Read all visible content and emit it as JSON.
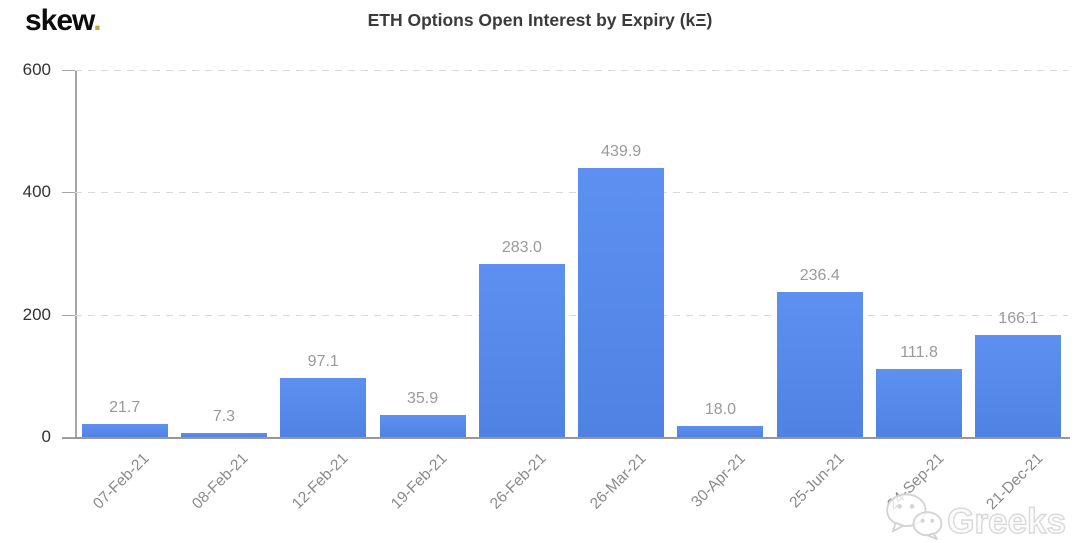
{
  "logo": {
    "text": "skew",
    "dot": "."
  },
  "header": {
    "title": "ETH Options Open Interest by Expiry (kΞ)"
  },
  "watermark": {
    "label": "Greeks",
    "icon": "wechat-icon"
  },
  "chart_data": {
    "type": "bar",
    "title": "ETH Options Open Interest by Expiry (kΞ)",
    "categories": [
      "07-Feb-21",
      "08-Feb-21",
      "12-Feb-21",
      "19-Feb-21",
      "26-Feb-21",
      "26-Mar-21",
      "30-Apr-21",
      "25-Jun-21",
      "24-Sep-21",
      "21-Dec-21"
    ],
    "values": [
      21.7,
      7.3,
      97.1,
      35.9,
      283.0,
      439.9,
      18.0,
      236.4,
      111.8,
      166.1
    ],
    "value_labels": [
      "21.7",
      "7.3",
      "97.1",
      "35.9",
      "283.0",
      "439.9",
      "18.0",
      "236.4",
      "111.8",
      "166.1"
    ],
    "xlabel": "",
    "ylabel": "",
    "ylim": [
      0,
      600
    ],
    "yticks": [
      0,
      200,
      400,
      600
    ],
    "grid": "horizontal-dashed",
    "legend": "none",
    "bar_color": "#5587e8"
  },
  "colors": {
    "bar": "#4f82e2",
    "bar-top": "#5d90f0",
    "grid": "#d9d9d9",
    "axis": "#a6a6a6",
    "baseline": "#979797",
    "title": "#3b3b3b",
    "ytick-text": "#333333",
    "xtick-text": "#8a8a8a",
    "value-text": "#9a9a9a",
    "logo-dot": "#c9a43b",
    "watermark": "#d9d9d9"
  }
}
